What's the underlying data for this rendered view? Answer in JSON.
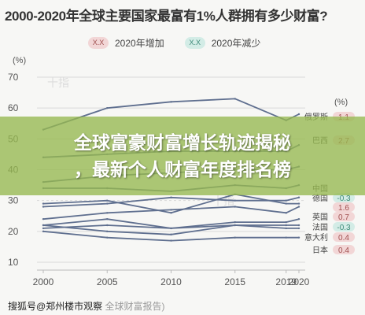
{
  "chart_data": {
    "type": "line",
    "title": "2000-2020年全球主要国家最富有1%人群拥有多少财富?",
    "xlabel": "",
    "ylabel": "(%)",
    "right_unit": "(%)",
    "x": [
      2000,
      2005,
      2010,
      2015,
      2019,
      2020
    ],
    "x_ticks": [
      "2000",
      "2005",
      "2010",
      "2015",
      "2019",
      "2020"
    ],
    "y_ticks": [
      10,
      20,
      30,
      40,
      50,
      60,
      70
    ],
    "ylim": [
      10,
      70
    ],
    "grid": true,
    "legend_placement": "top",
    "legend": [
      {
        "swatch": "X.X",
        "label": "2020年增加",
        "color": "#f2d6d6"
      },
      {
        "swatch": "X.X",
        "label": "2020年减少",
        "color": "#d3ece6"
      }
    ],
    "series": [
      {
        "name": "俄罗斯",
        "change": "1.1",
        "trend": "increase",
        "values": [
          53,
          60,
          62,
          63,
          56,
          58
        ]
      },
      {
        "name": "巴西",
        "change": "2.7",
        "trend": "increase",
        "values": [
          44,
          45,
          46,
          46,
          46,
          48
        ]
      },
      {
        "name": "印度",
        "change": "",
        "trend": "increase",
        "values": [
          36,
          38,
          39,
          40,
          40,
          41
        ]
      },
      {
        "name": "美国",
        "change": "",
        "trend": "increase",
        "values": [
          34,
          34,
          33,
          35,
          34,
          35
        ]
      },
      {
        "name": "中国",
        "change": "",
        "trend": "increase",
        "values": [
          28,
          29,
          31,
          30,
          30,
          31
        ]
      },
      {
        "name": "德国",
        "change": "-0.3",
        "trend": "decrease",
        "values": [
          29,
          30,
          26,
          32,
          29,
          29
        ]
      },
      {
        "name": "",
        "change": "1.6",
        "trend": "increase",
        "values": [
          24,
          26,
          27,
          28,
          26,
          28
        ]
      },
      {
        "name": "英国",
        "change": "0.7",
        "trend": "increase",
        "values": [
          22,
          24,
          21,
          23,
          23,
          24
        ]
      },
      {
        "name": "法国",
        "change": "-0.3",
        "trend": "decrease",
        "values": [
          21,
          22,
          21,
          22,
          22,
          22
        ]
      },
      {
        "name": "意大利",
        "change": "0.4",
        "trend": "increase",
        "values": [
          22,
          20,
          19,
          22,
          21,
          21
        ]
      },
      {
        "name": "日本",
        "change": "0.4",
        "trend": "increase",
        "values": [
          20,
          18,
          17,
          18,
          18,
          18
        ]
      }
    ]
  },
  "watermarks": [
    "十指",
    "十指"
  ],
  "banner": {
    "line1": "全球富豪财富增长轨迹揭秘",
    "line2": "，最新个人财富年度排名榜"
  },
  "footer": {
    "text": "搜狐号@郑州楼市观察",
    "ghost": "全球财富报告)"
  },
  "colors": {
    "line": "#5f6f8f",
    "grid": "#d9d9d9",
    "increase_badge": "#f2d6d6",
    "increase_text": "#a05050",
    "decrease_badge": "#d3ece6",
    "decrease_text": "#3d8a78",
    "banner": "#96b950"
  }
}
